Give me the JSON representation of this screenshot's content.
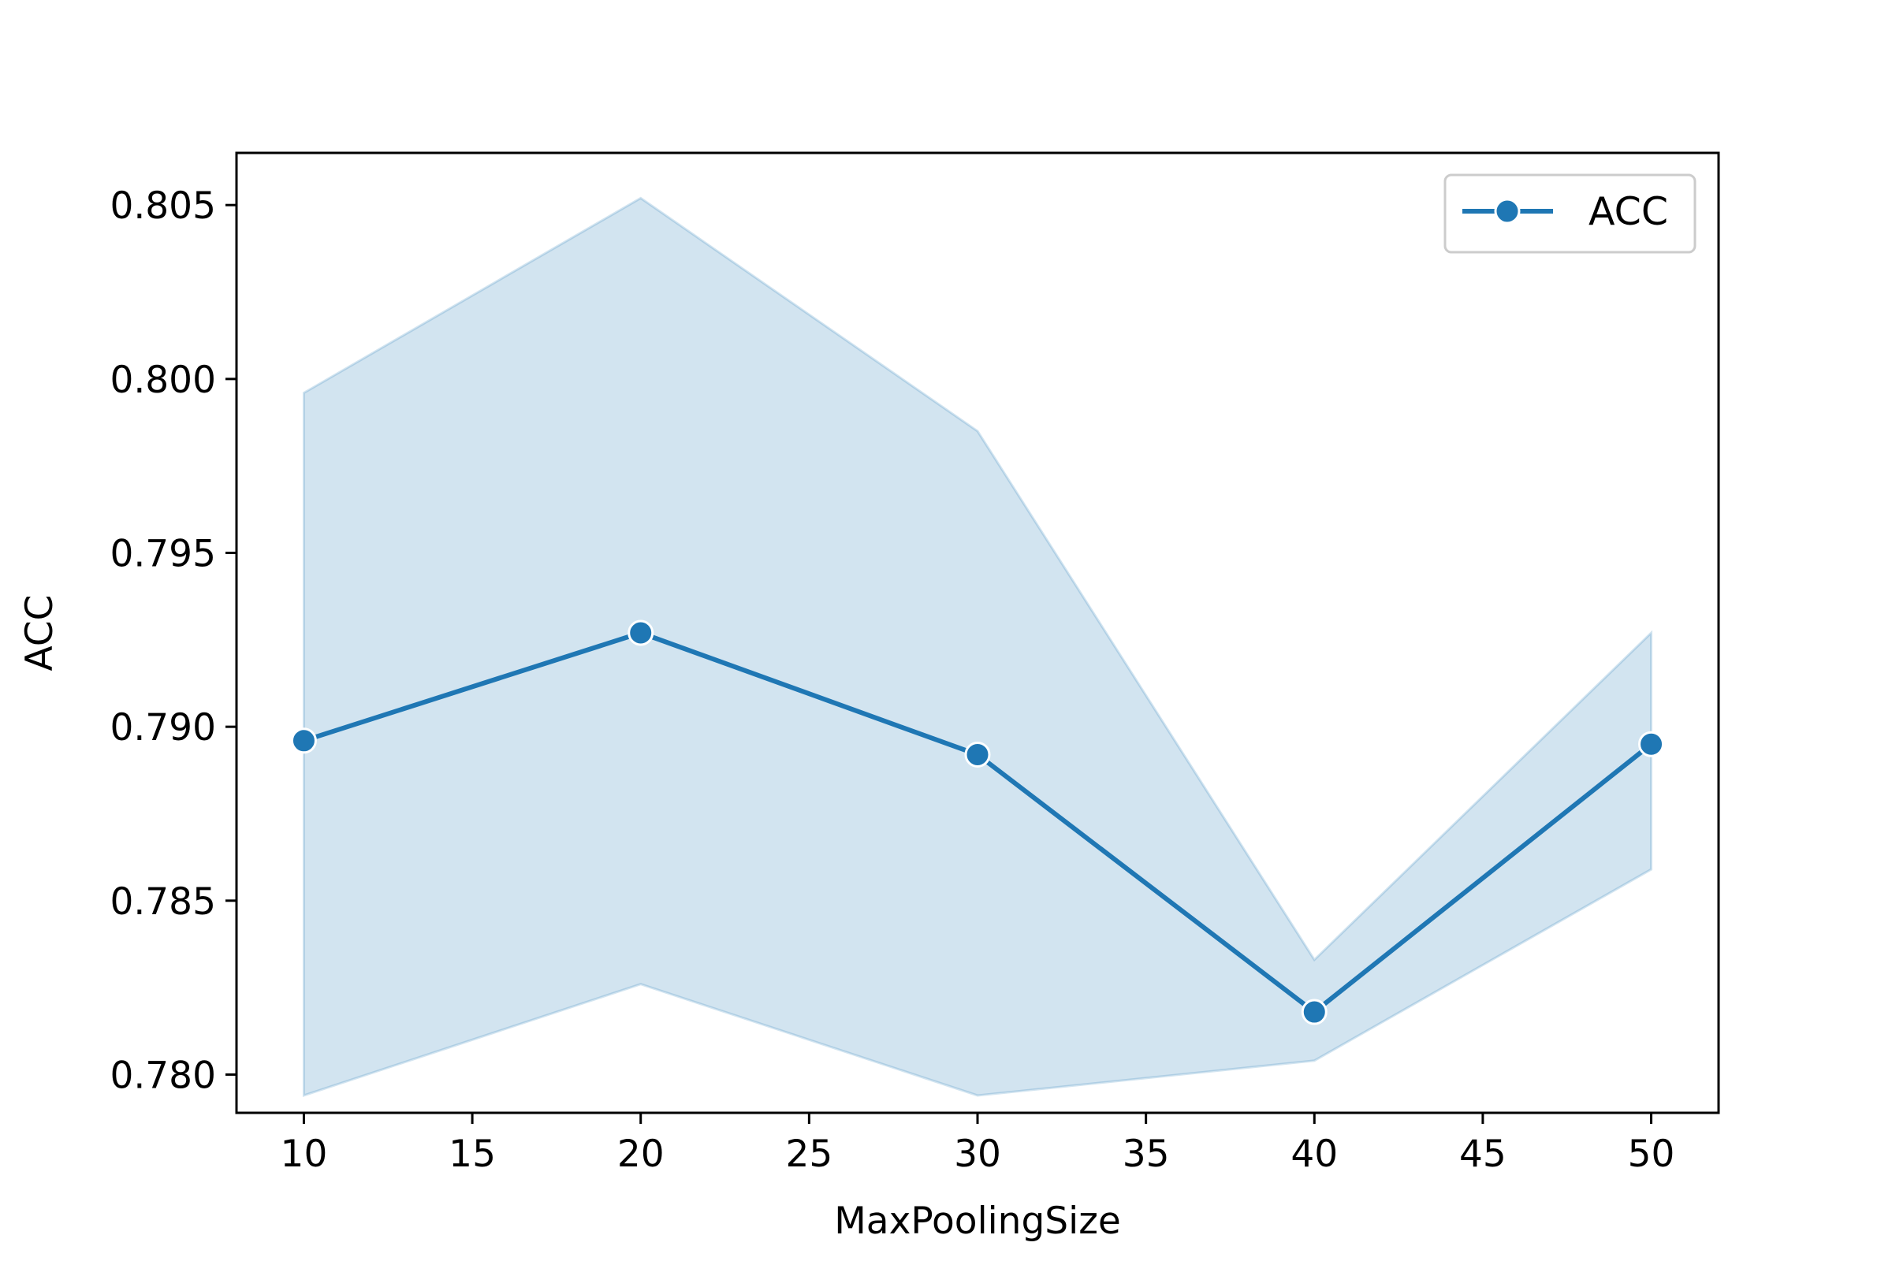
{
  "chart_data": {
    "type": "line",
    "title": "",
    "xlabel": "MaxPoolingSize",
    "ylabel": "ACC",
    "x": [
      10,
      20,
      30,
      40,
      50
    ],
    "series": [
      {
        "name": "ACC",
        "values": [
          0.7896,
          0.7927,
          0.7892,
          0.7818,
          0.7895
        ],
        "ci_upper": [
          0.7996,
          0.8052,
          0.7985,
          0.7833,
          0.7927
        ],
        "ci_lower": [
          0.7794,
          0.7826,
          0.7794,
          0.7804,
          0.7859
        ],
        "color": "#1f77b4",
        "band_color": "#1f77b4",
        "marker": "circle"
      }
    ],
    "xlim": [
      8,
      52
    ],
    "ylim": [
      0.7789,
      0.8065
    ],
    "xticks": [
      10,
      15,
      20,
      25,
      30,
      35,
      40,
      45,
      50
    ],
    "xtick_labels": [
      "10",
      "15",
      "20",
      "25",
      "30",
      "35",
      "40",
      "45",
      "50"
    ],
    "yticks": [
      0.78,
      0.785,
      0.79,
      0.795,
      0.8,
      0.805
    ],
    "ytick_labels": [
      "0.780",
      "0.785",
      "0.790",
      "0.795",
      "0.800",
      "0.805"
    ],
    "grid": false,
    "legend": {
      "position": "upper-right",
      "entries": [
        "ACC"
      ]
    }
  }
}
